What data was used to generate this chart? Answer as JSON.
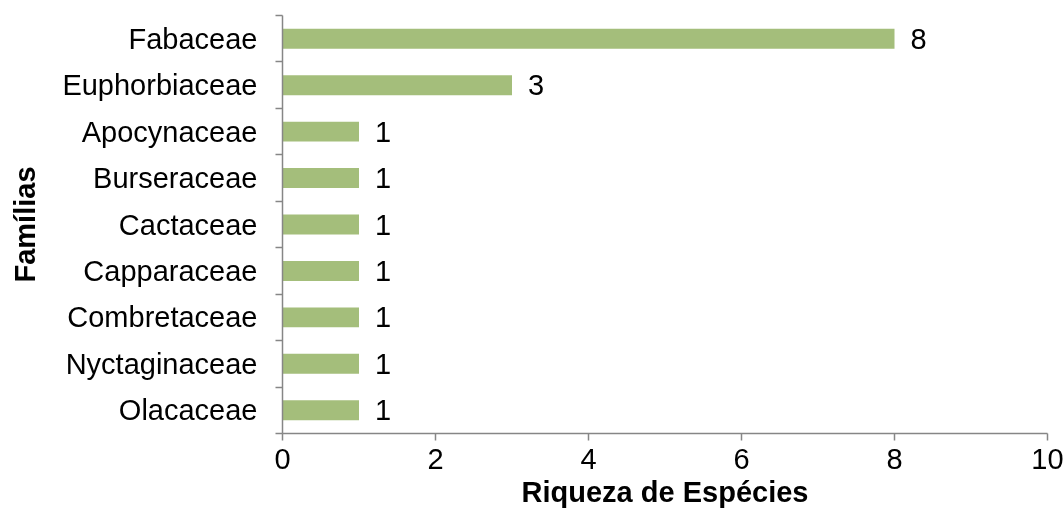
{
  "chart_data": {
    "type": "bar",
    "orientation": "horizontal",
    "xlabel": "Riqueza de Espécies",
    "ylabel": "Famílias",
    "categories": [
      "Fabaceae",
      "Euphorbiaceae",
      "Apocynaceae",
      "Burseraceae",
      "Cactaceae",
      "Capparaceae",
      "Combretaceae",
      "Nyctaginaceae",
      "Olacaceae"
    ],
    "values": [
      8,
      3,
      1,
      1,
      1,
      1,
      1,
      1,
      1
    ],
    "color": "#a4be7b",
    "xlim": [
      0,
      10
    ],
    "xticks": [
      0,
      2,
      4,
      6,
      8,
      10
    ],
    "data_labels": true,
    "grid": false
  }
}
